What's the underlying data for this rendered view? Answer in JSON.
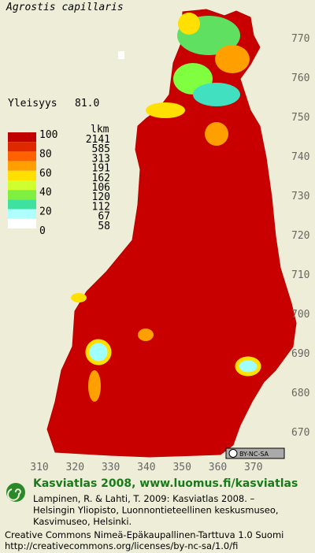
{
  "header": {
    "title": "Agrostis capillaris",
    "frequency_label": "Yleisyys",
    "frequency_value": "81.0"
  },
  "legend": {
    "count_header": "lkm",
    "scale_labels": [
      "100",
      "80",
      "60",
      "40",
      "20",
      "0"
    ],
    "counts": [
      "2141",
      "585",
      "313",
      "191",
      "162",
      "106",
      "120",
      "112",
      "67",
      "58"
    ]
  },
  "map": {
    "northing_labels": [
      "770",
      "760",
      "750",
      "740",
      "730",
      "720",
      "710",
      "700",
      "690",
      "680",
      "670"
    ],
    "easting_labels": [
      "310",
      "320",
      "330",
      "340",
      "350",
      "360",
      "370"
    ],
    "license_badge": "BY-NC-SA"
  },
  "footer": {
    "site": "Kasviatlas 2008, www.luomus.fi/kasviatlas",
    "citation": [
      "Lampinen, R. & Lahti, T. 2009: Kasviatlas 2008. –",
      "Helsingin Yliopisto, Luonnontieteellinen keskusmuseo,",
      "Kasvimuseo, Helsinki."
    ],
    "license": [
      "Creative Commons Nimeä-Epäkaupallinen-Tarttuva 1.0 Suomi",
      "http://creativecommons.org/licenses/by-nc-sa/1.0/fi"
    ]
  }
}
